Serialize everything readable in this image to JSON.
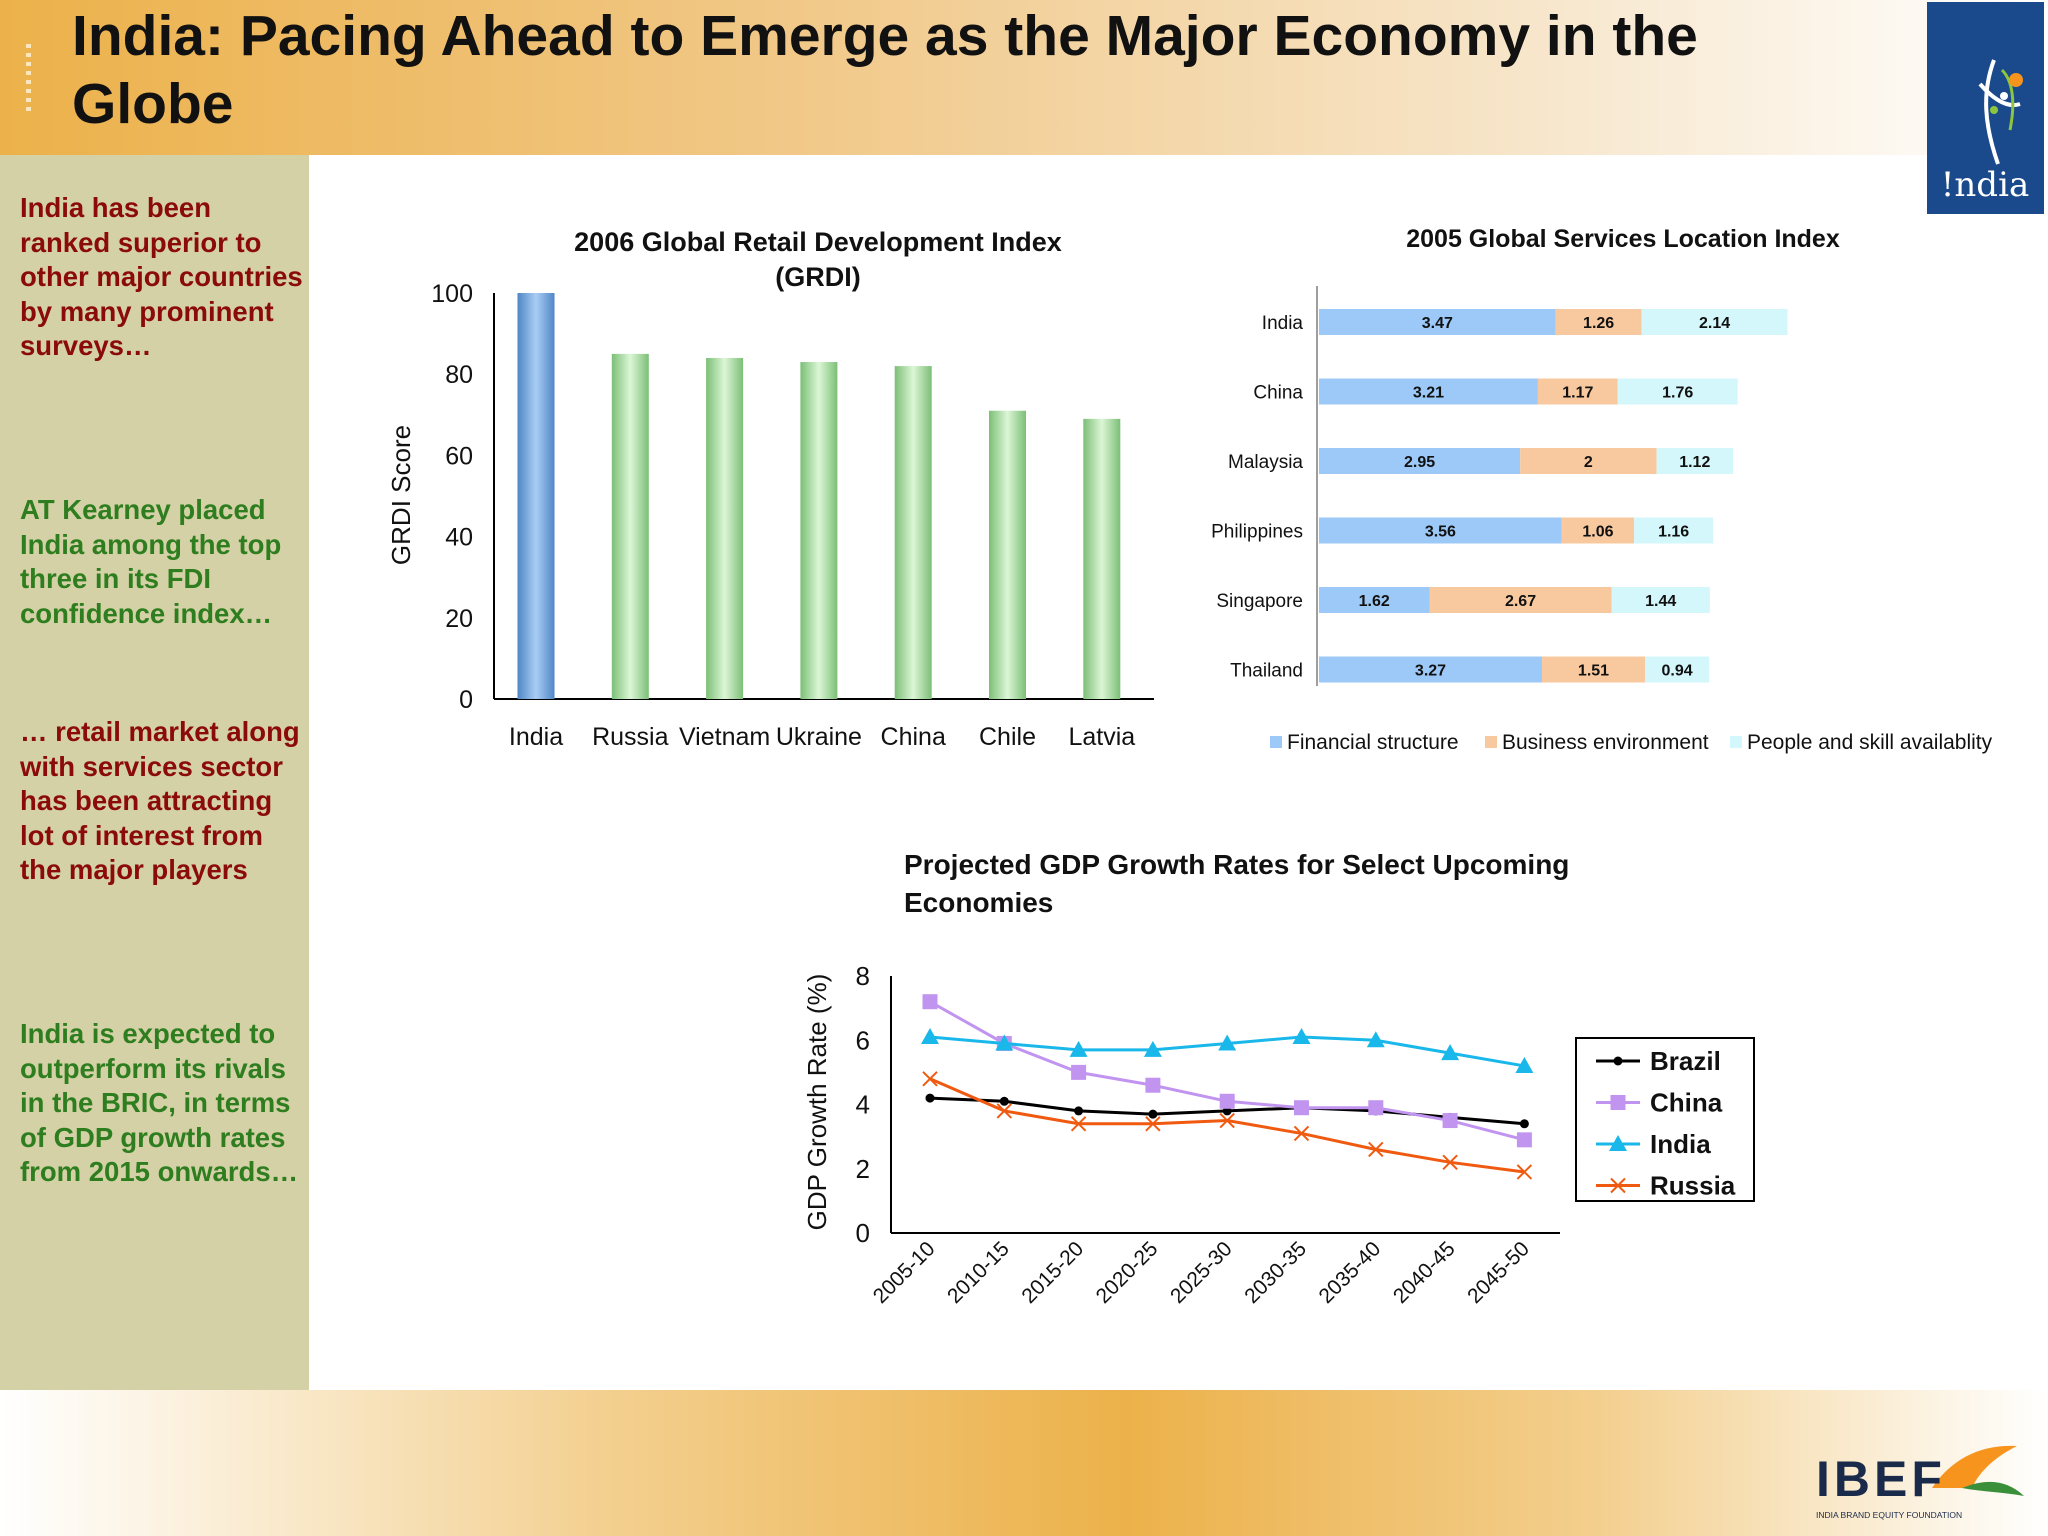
{
  "slide": {
    "title": "India: Pacing Ahead to Emerge as the Major Economy in the Globe",
    "logo_text": "!ndia",
    "ibef_logo": "IBEF",
    "ibef_tagline": "INDIA BRAND EQUITY FOUNDATION"
  },
  "sidebar": {
    "notes": [
      {
        "text": "India has been ranked superior to other major countries by many prominent surveys…",
        "color": "#8b0a0a"
      },
      {
        "text": "AT Kearney placed India among the top three in its FDI confidence index…",
        "color": "#2e7d1f"
      },
      {
        "text": "… retail market along with services sector has been attracting lot of interest from the major players",
        "color": "#8b0a0a"
      },
      {
        "text": "India is expected to outperform its rivals in the BRIC, in terms of GDP growth rates from 2015 onwards…",
        "color": "#2e7d1f"
      }
    ]
  },
  "chart_data": [
    {
      "type": "bar",
      "title": "2006 Global Retail Development Index (GRDI)",
      "ylabel": "GRDI Score",
      "xlabel": "",
      "categories": [
        "India",
        "Russia",
        "Vietnam",
        "Ukraine",
        "China",
        "Chile",
        "Latvia"
      ],
      "values": [
        100,
        85,
        84,
        83,
        82,
        71,
        69
      ],
      "ylim": [
        0,
        100
      ],
      "yticks": [
        0,
        20,
        40,
        60,
        80,
        100
      ],
      "colors": {
        "highlight": "#6f9fd8",
        "default": "#a9dba2"
      }
    },
    {
      "type": "bar",
      "orientation": "horizontal-stacked",
      "title": "2005 Global Services Location Index",
      "categories": [
        "India",
        "China",
        "Malaysia",
        "Philippines",
        "Singapore",
        "Thailand"
      ],
      "series": [
        {
          "name": "Financial structure",
          "values": [
            3.47,
            3.21,
            2.95,
            3.56,
            1.62,
            3.27
          ],
          "color": "#9cc9f7",
          "labels": [
            "3.47",
            "3.21",
            "2.95",
            "3.56",
            "1.62",
            "3.27"
          ]
        },
        {
          "name": "Business environment",
          "values": [
            1.26,
            1.17,
            2,
            1.06,
            2.67,
            1.51
          ],
          "color": "#f8c99e",
          "labels": [
            "1.26",
            "1.17",
            "2",
            "1.06",
            "2.67",
            "1.51"
          ]
        },
        {
          "name": "People and skill availablity",
          "values": [
            2.14,
            1.76,
            1.12,
            1.16,
            1.44,
            0.94
          ],
          "color": "#d4f7fc",
          "labels": [
            "2.14",
            "1.76",
            "1.12",
            "1.16",
            "1.44",
            "0.94"
          ]
        }
      ],
      "legend_position": "bottom"
    },
    {
      "type": "line",
      "title": "Projected GDP Growth Rates for Select Upcoming Economies",
      "ylabel": "GDP Growth Rate (%)",
      "xlabel": "",
      "x": [
        "2005-10",
        "2010-15",
        "2015-20",
        "2020-25",
        "2025-30",
        "2030-35",
        "2035-40",
        "2040-45",
        "2045-50"
      ],
      "ylim": [
        0,
        8
      ],
      "yticks": [
        0,
        2,
        4,
        6,
        8
      ],
      "series": [
        {
          "name": "Brazil",
          "values": [
            4.2,
            4.1,
            3.8,
            3.7,
            3.8,
            3.9,
            3.8,
            3.6,
            3.4
          ],
          "color": "#000000",
          "marker": "dot"
        },
        {
          "name": "China",
          "values": [
            7.2,
            5.9,
            5.0,
            4.6,
            4.1,
            3.9,
            3.9,
            3.5,
            2.9
          ],
          "color": "#c195ef",
          "marker": "square"
        },
        {
          "name": "India",
          "values": [
            6.1,
            5.9,
            5.7,
            5.7,
            5.9,
            6.1,
            6.0,
            5.6,
            5.2
          ],
          "color": "#1ab8ea",
          "marker": "triangle"
        },
        {
          "name": "Russia",
          "values": [
            4.8,
            3.8,
            3.4,
            3.4,
            3.5,
            3.1,
            2.6,
            2.2,
            1.9
          ],
          "color": "#f05a10",
          "marker": "cross"
        }
      ],
      "legend_position": "right"
    }
  ]
}
